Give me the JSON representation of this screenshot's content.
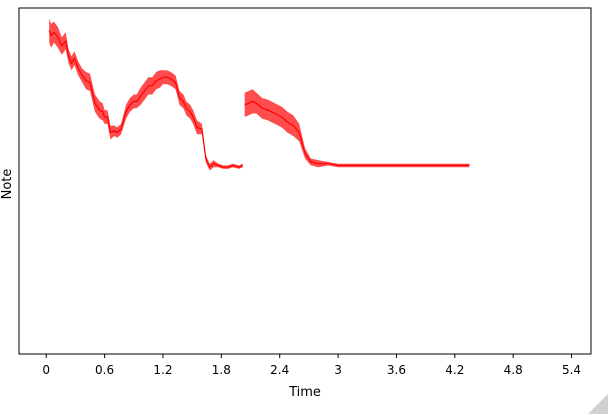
{
  "chart_data": {
    "type": "line",
    "xlabel": "Time",
    "ylabel": "Note",
    "xlim": [
      -0.28,
      5.6
    ],
    "ylim": [
      0,
      100
    ],
    "xticks": [
      0,
      0.6,
      1.2,
      1.8,
      2.4,
      3,
      3.6,
      4.2,
      4.8,
      5.4
    ],
    "xtick_labels": [
      "0",
      "0.6",
      "1.2",
      "1.8",
      "2.4",
      "3",
      "3.6",
      "4.2",
      "4.8",
      "5.4"
    ],
    "grid": false,
    "legend": "none",
    "series": [
      {
        "color": "#ff0000",
        "segments": [
          {
            "x": [
              0.03,
              0.05,
              0.08,
              0.12,
              0.16,
              0.2,
              0.23,
              0.26,
              0.29,
              0.33,
              0.37,
              0.41,
              0.45,
              0.5,
              0.55,
              0.58,
              0.6,
              0.63,
              0.66,
              0.7,
              0.73,
              0.77,
              0.82,
              0.86,
              0.9,
              0.93,
              0.97,
              1.01,
              1.05,
              1.09,
              1.13,
              1.17,
              1.2,
              1.24,
              1.28,
              1.33,
              1.37,
              1.41,
              1.44,
              1.48,
              1.51,
              1.55,
              1.6,
              1.64,
              1.68,
              1.72,
              1.77,
              1.82,
              1.87,
              1.92,
              1.98,
              2.02
            ],
            "y": [
              93.5,
              92.0,
              93.0,
              91.5,
              89.0,
              90.5,
              86.0,
              84.0,
              85.5,
              82.5,
              80.5,
              79.0,
              78.5,
              72.5,
              70.5,
              70.0,
              68.5,
              68.5,
              64.0,
              64.5,
              64.0,
              65.0,
              70.0,
              72.0,
              73.0,
              73.0,
              74.5,
              76.0,
              77.5,
              77.5,
              79.0,
              79.5,
              80.0,
              80.0,
              79.5,
              78.5,
              74.0,
              73.0,
              71.0,
              70.0,
              68.5,
              65.5,
              65.0,
              56.5,
              54.0,
              55.0,
              54.5,
              54.0,
              54.0,
              54.5,
              54.0,
              54.5
            ],
            "band": [
              3.5,
              3.5,
              3.0,
              3.0,
              2.5,
              2.5,
              2.0,
              2.0,
              2.0,
              2.0,
              2.0,
              2.5,
              2.5,
              2.5,
              2.5,
              2.5,
              2.0,
              2.0,
              2.0,
              1.5,
              1.5,
              1.5,
              2.0,
              2.0,
              2.0,
              2.0,
              2.5,
              2.5,
              2.5,
              2.5,
              2.5,
              2.5,
              2.0,
              2.0,
              2.0,
              2.0,
              2.0,
              2.0,
              2.0,
              2.0,
              2.0,
              2.0,
              1.5,
              1.0,
              1.0,
              1.0,
              0.5,
              0.5,
              0.5,
              0.5,
              0.5,
              0.5
            ]
          },
          {
            "x": [
              2.04,
              2.08,
              2.12,
              2.16,
              2.22,
              2.28,
              2.35,
              2.42,
              2.48,
              2.54,
              2.6,
              2.66,
              2.72,
              2.8,
              2.9,
              3.0,
              3.1,
              3.2,
              3.3,
              3.4,
              3.5,
              3.6,
              3.7,
              3.8,
              3.9,
              4.0,
              4.1,
              4.2,
              4.3,
              4.35
            ],
            "y": [
              72.0,
              72.5,
              73.0,
              72.5,
              71.0,
              70.5,
              69.5,
              68.5,
              67.0,
              66.0,
              64.0,
              58.0,
              55.5,
              55.0,
              55.0,
              54.5,
              54.5,
              54.5,
              54.5,
              54.5,
              54.5,
              54.5,
              54.5,
              54.5,
              54.5,
              54.5,
              54.5,
              54.5,
              54.5,
              54.5
            ],
            "band": [
              3.5,
              3.5,
              3.5,
              3.0,
              3.0,
              3.0,
              3.0,
              3.0,
              3.0,
              3.0,
              2.5,
              1.5,
              1.0,
              1.0,
              0.5,
              0.5,
              0.5,
              0.5,
              0.5,
              0.5,
              0.5,
              0.5,
              0.5,
              0.5,
              0.5,
              0.5,
              0.5,
              0.5,
              0.5,
              0.5
            ]
          }
        ]
      }
    ]
  }
}
